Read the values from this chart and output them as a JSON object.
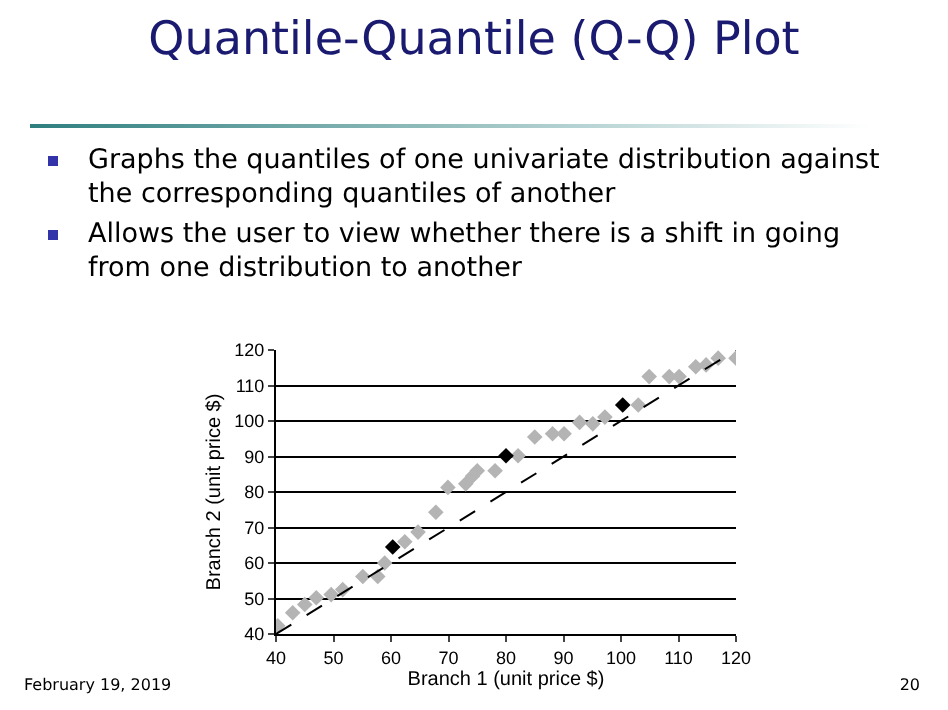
{
  "chart_data": {
    "type": "scatter",
    "title": "Quantile-Quantile (Q-Q) Plot",
    "xlabel": "Branch 1 (unit price $)",
    "ylabel": "Branch 2 (unit price $)",
    "annotations": [
      "Graphs the quantiles of one univariate distribution against the corresponding quantiles of another",
      "Allows the user to view whether there is a shift in going from one distribution to another",
      "February 19, 2019",
      "20"
    ],
    "series": [
      {
        "color": "#b4b4b4",
        "marker": "diamond",
        "x": [
          40.3,
          42.9,
          45.0,
          47.0,
          49.6,
          51.6,
          55.1,
          57.7,
          58.9,
          62.4,
          64.7,
          67.8,
          69.9,
          73.0,
          74.2,
          75.0,
          78.1,
          82.1,
          85.0,
          88.1,
          90.1,
          92.8,
          95.1,
          97.2,
          103.0,
          104.9,
          108.4,
          110.1,
          113.0,
          114.8,
          116.9,
          120.0
        ],
        "values": [
          42.3,
          46.0,
          48.3,
          50.2,
          51.1,
          52.5,
          56.2,
          56.2,
          60.0,
          66.0,
          68.7,
          74.3,
          81.3,
          82.3,
          84.5,
          86.0,
          86.0,
          90.2,
          95.5,
          96.4,
          96.4,
          99.6,
          99.2,
          101.1,
          104.5,
          112.5,
          112.5,
          112.5,
          115.3,
          115.8,
          117.7,
          117.7
        ]
      },
      {
        "color": "#000000",
        "marker": "diamond",
        "x": [
          60.3,
          80.0,
          100.3
        ],
        "values": [
          64.5,
          90.2,
          104.5
        ]
      },
      {
        "type": "line",
        "color": "#000000",
        "line_style": "dashed",
        "x": [
          40,
          120
        ],
        "values": [
          40,
          120
        ]
      }
    ],
    "xlim": [
      40,
      120
    ],
    "xticks": [
      40,
      50,
      60,
      70,
      80,
      90,
      100,
      110,
      120
    ],
    "ylim": [
      40,
      120
    ],
    "yticks": [
      40,
      50,
      60,
      70,
      80,
      90,
      100,
      110,
      120
    ],
    "grid": "y"
  }
}
